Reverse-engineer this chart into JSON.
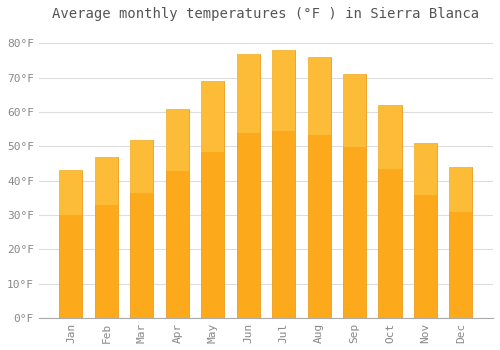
{
  "title": "Average monthly temperatures (°F ) in Sierra Blanca",
  "months": [
    "Jan",
    "Feb",
    "Mar",
    "Apr",
    "May",
    "Jun",
    "Jul",
    "Aug",
    "Sep",
    "Oct",
    "Nov",
    "Dec"
  ],
  "values": [
    43,
    47,
    52,
    61,
    69,
    77,
    78,
    76,
    71,
    62,
    51,
    44
  ],
  "bar_color": "#FCAA1B",
  "bar_edge_color": "#E8920A",
  "background_color": "#FFFFFF",
  "grid_color": "#DDDDDD",
  "ylim": [
    0,
    85
  ],
  "yticks": [
    0,
    10,
    20,
    30,
    40,
    50,
    60,
    70,
    80
  ],
  "ytick_labels": [
    "0°F",
    "10°F",
    "20°F",
    "30°F",
    "40°F",
    "50°F",
    "60°F",
    "70°F",
    "80°F"
  ],
  "title_fontsize": 10,
  "tick_fontsize": 8,
  "tick_color": "#888888",
  "title_color": "#555555",
  "font_family": "monospace",
  "bar_width": 0.65
}
